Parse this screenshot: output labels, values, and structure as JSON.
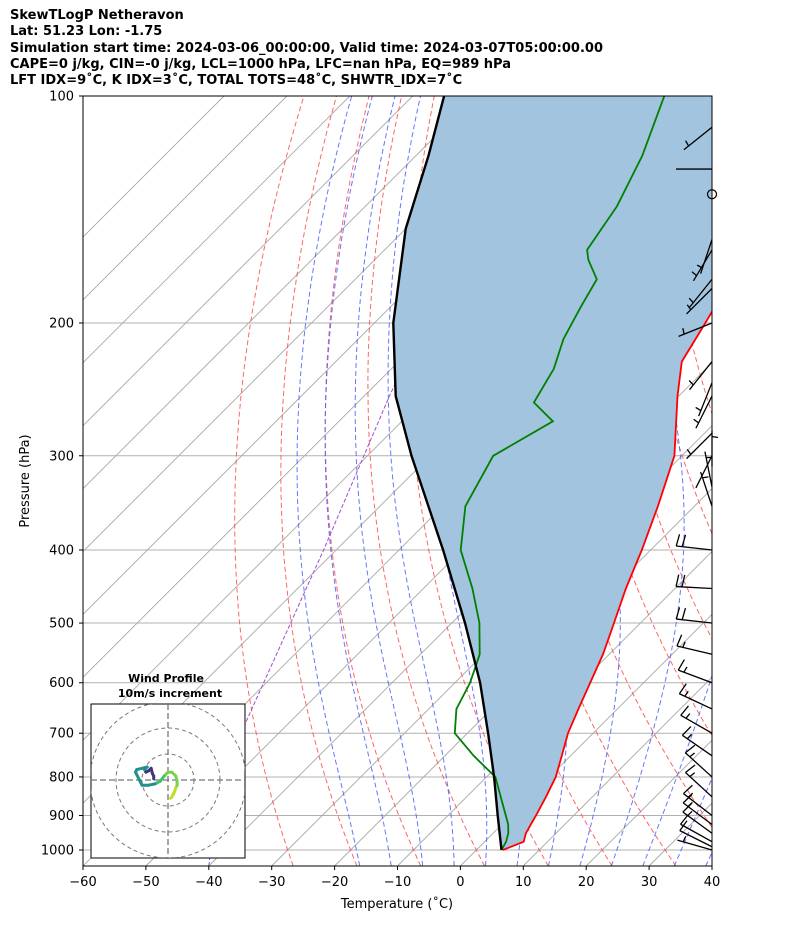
{
  "header": {
    "line1": "SkewTLogP Netheravon",
    "line2": "Lat: 51.23   Lon: -1.75",
    "line3": "Simulation start time: 2024-03-06_00:00:00, Valid time: 2024-03-07T05:00:00.00",
    "line4": "CAPE=0 j/kg, CIN=-0 j/kg, LCL=1000 hPa, LFC=nan hPa, EQ=989 hPa",
    "line5": "LFT IDX=9˚C, K IDX=3˚C, TOTAL TOTS=48˚C, SHWTR_IDX=7˚C"
  },
  "chart_data": {
    "type": "skewt",
    "xlabel": "Temperature (˚C)",
    "ylabel": "Pressure (hPa)",
    "xlim": [
      -60,
      40
    ],
    "ylim": [
      1050,
      100
    ],
    "x_ticks": [
      -60,
      -50,
      -40,
      -30,
      -20,
      -10,
      0,
      10,
      20,
      30,
      40
    ],
    "y_ticks": [
      100,
      200,
      300,
      400,
      500,
      600,
      700,
      800,
      900,
      1000
    ],
    "temperature": {
      "name": "Temperature",
      "color": "#ff0000",
      "p": [
        1000,
        975,
        950,
        925,
        900,
        850,
        800,
        750,
        700,
        650,
        600,
        550,
        500,
        450,
        400,
        350,
        300,
        250,
        225,
        200,
        180,
        170,
        160,
        150,
        130,
        115,
        100
      ],
      "t": [
        4.2,
        6.2,
        5.2,
        4.6,
        4.0,
        2.6,
        1.0,
        -1.4,
        -4.0,
        -6.2,
        -8.5,
        -11.0,
        -14.2,
        -17.8,
        -21.4,
        -25.8,
        -31.2,
        -40.2,
        -45.0,
        -47.4,
        -49.6,
        -50.2,
        -50.8,
        -51.4,
        -52.6,
        -53.4,
        -54.0
      ]
    },
    "dewpoint": {
      "name": "Dewpoint",
      "color": "#008000",
      "p": [
        1000,
        975,
        950,
        925,
        900,
        850,
        800,
        750,
        700,
        650,
        600,
        550,
        500,
        450,
        400,
        350,
        300,
        270,
        255,
        230,
        210,
        190,
        175,
        165,
        160,
        140,
        120,
        100
      ],
      "t": [
        4.0,
        3.4,
        2.4,
        1.0,
        -0.8,
        -4.6,
        -8.6,
        -15.4,
        -22.0,
        -25.6,
        -27.6,
        -30.6,
        -35.6,
        -42.2,
        -50.2,
        -56.4,
        -60.0,
        -56.0,
        -62.0,
        -64.2,
        -67.4,
        -69.8,
        -71.6,
        -76.0,
        -77.8,
        -80.0,
        -84.0,
        -90.0
      ]
    },
    "parcel": {
      "name": "Parcel profile",
      "color": "#000000",
      "p": [
        1000,
        900,
        800,
        700,
        600,
        500,
        400,
        300,
        250,
        200,
        150,
        120,
        100
      ],
      "t": [
        4.0,
        -2.1,
        -8.8,
        -16.7,
        -26.0,
        -37.9,
        -53.0,
        -73.0,
        -85.0,
        -97.0,
        -110.0,
        -118.0,
        -125.0
      ]
    },
    "cape_shading": "light steel blue fill between temperature and parcel profile",
    "wind_barbs": {
      "p": [
        1000,
        990,
        975,
        950,
        925,
        900,
        850,
        800,
        750,
        700,
        650,
        600,
        550,
        500,
        450,
        400,
        350,
        330,
        310,
        300,
        280,
        250,
        240,
        225,
        200,
        180,
        175,
        160,
        155,
        125,
        110
      ],
      "u_kt": [
        7,
        8,
        9,
        11,
        12,
        13,
        12,
        11,
        13,
        14,
        15,
        16,
        17,
        18,
        18,
        18,
        2,
        1,
        0,
        1,
        2,
        3,
        2,
        4,
        5,
        4,
        4,
        3,
        2,
        1,
        5
      ],
      "v_kt": [
        -2,
        -4,
        -5,
        -8,
        -9,
        -10,
        -11,
        -10,
        -9,
        -8,
        -7,
        -6,
        -4,
        -2,
        -1,
        -2,
        -6,
        -5,
        -3,
        2,
        2,
        6,
        5,
        5,
        2,
        4,
        5,
        5,
        6,
        0,
        4
      ],
      "calm_marker_p": 135
    },
    "hodograph": {
      "title": "Wind Profile",
      "subtitle": "10m/s increment",
      "u": [
        1,
        1.5,
        2,
        2.5,
        3,
        3.5,
        3.5,
        3,
        1.5,
        0,
        -1.5,
        -3,
        -5,
        -7.5,
        -10,
        -12.5,
        -12,
        -10,
        -8,
        -9,
        -8.5,
        -7.5,
        -6.5,
        -6,
        -5.5,
        -5.5
      ],
      "v": [
        -7,
        -6.5,
        -5.5,
        -4.5,
        -3,
        -2,
        -0.5,
        1.5,
        3,
        3,
        1.5,
        -0.5,
        -1.5,
        -2,
        -2,
        3,
        4,
        4.5,
        5,
        4,
        3,
        3.5,
        4.5,
        2.5,
        1.5,
        0.5
      ]
    }
  }
}
